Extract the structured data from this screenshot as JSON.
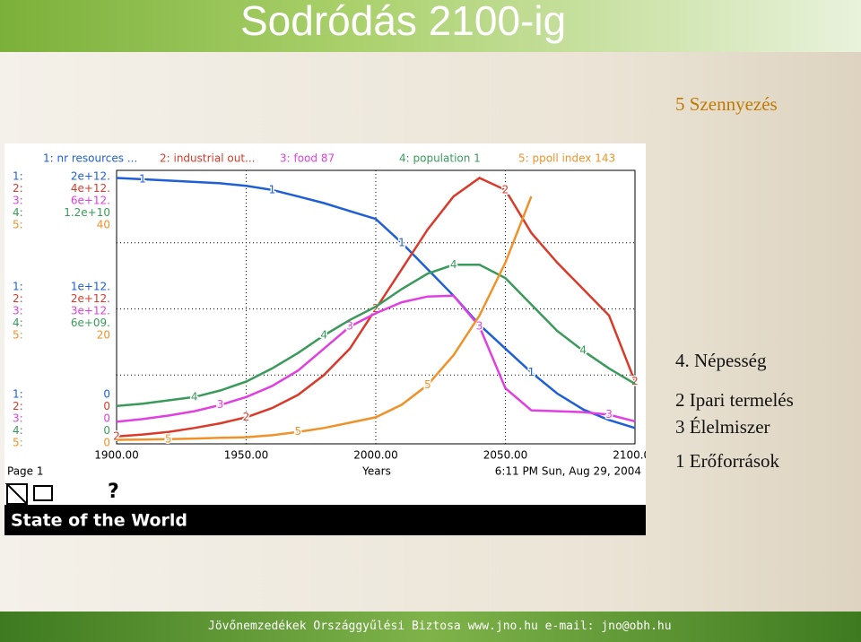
{
  "slide": {
    "title": "Sodródás 2100-ig",
    "notes": [
      "5 Szennyezés",
      "4. Népesség",
      "2 Ipari termelés",
      "3 Élelmiszer",
      "1 Erőforrások"
    ],
    "footer": "Jövőnemzedékek Országgyűlési Biztosa www.jno.hu    e-mail: jno@obh.hu",
    "page": "Page 1",
    "help": "?",
    "timestamp": "6:11 PM   Sun, Aug 29, 2004",
    "model": "State of the World"
  },
  "chart_data": {
    "type": "line",
    "x_label": "Years",
    "xlim": [
      1900,
      2100
    ],
    "xticks": [
      {
        "value": 1900,
        "label": "1900.00"
      },
      {
        "value": 1950,
        "label": "1950.00"
      },
      {
        "value": 2000,
        "label": "2000.00"
      },
      {
        "value": 2050,
        "label": "2050.00"
      },
      {
        "value": 2100,
        "label": "2100.00"
      }
    ],
    "x": [
      1900,
      1910,
      1920,
      1930,
      1940,
      1950,
      1960,
      1970,
      1980,
      1990,
      2000,
      2010,
      2020,
      2030,
      2040,
      2050,
      2060,
      2070,
      2080,
      2090,
      2100
    ],
    "grid": true,
    "series": [
      {
        "name": "1: nr resources ...",
        "axis_label": "1:",
        "marker": "1",
        "color": "#1f5fd6",
        "ylim": [
          0,
          2000000000000
        ],
        "yticks": [
          0,
          {
            "value": 1000000000000,
            "label": "1e+12."
          },
          {
            "value": 2000000000000,
            "label": "2e+12."
          }
        ],
        "values": [
          1990000000000,
          1980000000000,
          1970000000000,
          1960000000000,
          1950000000000,
          1930000000000,
          1900000000000,
          1850000000000,
          1800000000000,
          1740000000000,
          1680000000000,
          1500000000000,
          1300000000000,
          1100000000000,
          880000000000,
          700000000000,
          520000000000,
          360000000000,
          240000000000,
          160000000000,
          100000000000
        ]
      },
      {
        "name": "2: industrial out...",
        "axis_label": "2:",
        "marker": "2",
        "color": "#d93a2a",
        "ylim": [
          0,
          4000000000000
        ],
        "yticks": [
          0,
          {
            "value": 2000000000000,
            "label": "2e+12."
          },
          {
            "value": 4000000000000,
            "label": "4e+12."
          }
        ],
        "values": [
          70000000000,
          100000000000,
          140000000000,
          200000000000,
          270000000000,
          360000000000,
          500000000000,
          700000000000,
          1000000000000,
          1400000000000,
          2000000000000,
          2600000000000,
          3200000000000,
          3700000000000,
          3980000000000,
          3800000000000,
          3150000000000,
          2700000000000,
          2300000000000,
          1900000000000,
          900000000000
        ]
      },
      {
        "name": "3: food 87",
        "axis_label": "3:",
        "marker": "3",
        "color": "#e040e0",
        "ylim": [
          0,
          6000000000000
        ],
        "yticks": [
          0,
          {
            "value": 3000000000000,
            "label": "3e+12."
          },
          {
            "value": 6000000000000,
            "label": "6e+12."
          }
        ],
        "values": [
          440000000000,
          500000000000,
          580000000000,
          680000000000,
          820000000000,
          1000000000000,
          1250000000000,
          1600000000000,
          2100000000000,
          2600000000000,
          2900000000000,
          3150000000000,
          3280000000000,
          3300000000000,
          2600000000000,
          1200000000000,
          700000000000,
          680000000000,
          660000000000,
          600000000000,
          450000000000
        ]
      },
      {
        "name": "4: population 1",
        "axis_label": "4:",
        "marker": "4",
        "color": "#3a9a5a",
        "ylim": [
          0,
          12000000000
        ],
        "yticks": [
          0,
          {
            "value": 6000000000,
            "label": "6e+09."
          },
          {
            "value": 12000000000,
            "label": "1.2e+10"
          }
        ],
        "values": [
          1600000000,
          1700000000,
          1850000000,
          2000000000,
          2300000000,
          2700000000,
          3300000000,
          4000000000,
          4800000000,
          5500000000,
          6100000000,
          6900000000,
          7600000000,
          8000000000,
          8000000000,
          7400000000,
          6200000000,
          5000000000,
          4100000000,
          3300000000,
          2600000000
        ]
      },
      {
        "name": "5: ppoll index 143",
        "axis_label": "5:",
        "marker": "5",
        "color": "#f0922a",
        "ylim": [
          0,
          40
        ],
        "yticks": [
          0,
          20,
          40
        ],
        "values": [
          0.2,
          0.25,
          0.3,
          0.4,
          0.5,
          0.6,
          0.9,
          1.4,
          2.0,
          2.8,
          3.6,
          5.5,
          8.5,
          13,
          19,
          27,
          37,
          null,
          null,
          null,
          null
        ]
      }
    ]
  }
}
